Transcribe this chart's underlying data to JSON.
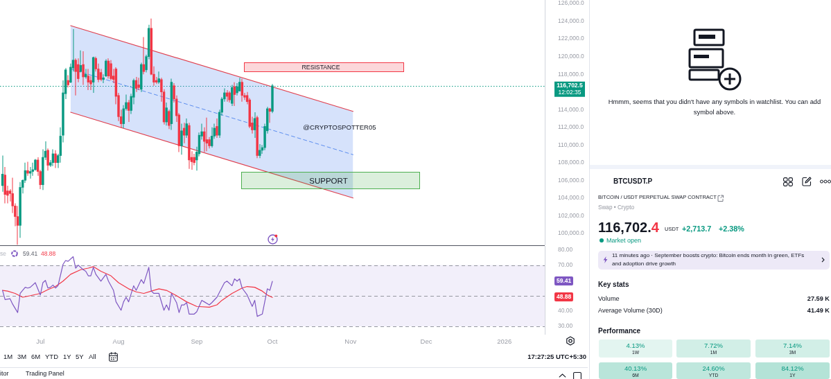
{
  "chart_data": [
    {
      "type": "candlestick",
      "x": [
        "2025-06-16",
        "2025-06-17",
        "2025-06-18",
        "2025-06-19",
        "2025-06-20",
        "2025-06-21",
        "2025-06-22",
        "2025-06-23",
        "2025-06-24",
        "2025-06-25",
        "2025-06-26",
        "2025-06-27",
        "2025-06-28",
        "2025-06-29",
        "2025-06-30",
        "2025-07-01",
        "2025-07-02",
        "2025-07-03",
        "2025-07-04",
        "2025-07-05",
        "2025-07-06",
        "2025-07-07",
        "2025-07-08",
        "2025-07-09",
        "2025-07-10",
        "2025-07-11",
        "2025-07-12",
        "2025-07-13",
        "2025-07-14",
        "2025-07-15",
        "2025-07-16",
        "2025-07-17",
        "2025-07-18",
        "2025-07-19",
        "2025-07-20",
        "2025-07-21",
        "2025-07-22",
        "2025-07-23",
        "2025-07-24",
        "2025-07-25",
        "2025-07-26",
        "2025-07-27",
        "2025-07-28",
        "2025-07-29",
        "2025-07-30",
        "2025-07-31",
        "2025-08-01",
        "2025-08-02",
        "2025-08-03",
        "2025-08-04",
        "2025-08-05",
        "2025-08-06",
        "2025-08-07",
        "2025-08-08",
        "2025-08-09",
        "2025-08-10",
        "2025-08-11",
        "2025-08-12",
        "2025-08-13",
        "2025-08-14",
        "2025-08-15",
        "2025-08-16",
        "2025-08-17",
        "2025-08-18",
        "2025-08-19",
        "2025-08-20",
        "2025-08-21",
        "2025-08-22",
        "2025-08-23",
        "2025-08-24",
        "2025-08-25",
        "2025-08-26",
        "2025-08-27",
        "2025-08-28",
        "2025-08-29",
        "2025-08-30",
        "2025-08-31",
        "2025-09-01",
        "2025-09-02",
        "2025-09-03",
        "2025-09-04",
        "2025-09-05",
        "2025-09-06",
        "2025-09-07",
        "2025-09-08",
        "2025-09-09",
        "2025-09-10",
        "2025-09-11",
        "2025-09-12",
        "2025-09-13",
        "2025-09-14",
        "2025-09-15",
        "2025-09-16",
        "2025-09-17",
        "2025-09-18",
        "2025-09-19",
        "2025-09-20",
        "2025-09-21",
        "2025-09-22",
        "2025-09-23",
        "2025-09-24",
        "2025-09-25",
        "2025-09-26",
        "2025-09-27",
        "2025-09-28",
        "2025-09-29",
        "2025-09-30",
        "2025-10-01"
      ],
      "ohlc": [
        [
          105400,
          108800,
          104700,
          106700
        ],
        [
          106600,
          107500,
          103400,
          104400
        ],
        [
          104800,
          105400,
          103400,
          104300
        ],
        [
          104800,
          105000,
          103600,
          104500
        ],
        [
          104500,
          106300,
          102300,
          103100
        ],
        [
          103100,
          103400,
          100800,
          101900
        ],
        [
          101900,
          103100,
          98700,
          100900
        ],
        [
          100900,
          105800,
          99500,
          105200
        ],
        [
          105200,
          106100,
          104500,
          106000
        ],
        [
          106000,
          108000,
          105700,
          107100
        ],
        [
          107100,
          108100,
          106500,
          106800
        ],
        [
          106800,
          107500,
          106200,
          107000
        ],
        [
          107000,
          108000,
          106500,
          107200
        ],
        [
          107200,
          108400,
          107100,
          108300
        ],
        [
          108300,
          108600,
          106500,
          107000
        ],
        [
          107000,
          107200,
          105000,
          105500
        ],
        [
          105500,
          109500,
          104900,
          108600
        ],
        [
          108600,
          110400,
          108300,
          109300
        ],
        [
          109400,
          109600,
          107100,
          107700
        ],
        [
          107700,
          108300,
          107500,
          108000
        ],
        [
          108000,
          109500,
          107600,
          109000
        ],
        [
          109000,
          109400,
          107400,
          108000
        ],
        [
          108000,
          109000,
          107400,
          108800
        ],
        [
          108800,
          112000,
          108000,
          111000
        ],
        [
          111100,
          117300,
          110300,
          115900
        ],
        [
          115800,
          118700,
          115200,
          118500
        ],
        [
          117300,
          117900,
          116500,
          116800
        ],
        [
          117100,
          119200,
          117000,
          118800
        ],
        [
          118700,
          123100,
          118300,
          119600
        ],
        [
          119600,
          119800,
          115600,
          118300
        ],
        [
          119100,
          119800,
          117100,
          117500
        ],
        [
          118300,
          120700,
          118200,
          119000
        ],
        [
          119100,
          120600,
          116800,
          117700
        ],
        [
          117700,
          118600,
          117500,
          118000
        ],
        [
          117800,
          118600,
          116200,
          117100
        ],
        [
          117300,
          117800,
          116200,
          116900
        ],
        [
          117100,
          120000,
          115900,
          119900
        ],
        [
          119800,
          120000,
          118300,
          118600
        ],
        [
          118600,
          119200,
          117100,
          117400
        ],
        [
          118200,
          118600,
          117200,
          117400
        ],
        [
          117400,
          118000,
          117000,
          117600
        ],
        [
          117800,
          119700,
          117700,
          119500
        ],
        [
          119500,
          119800,
          117500,
          117800
        ],
        [
          119200,
          119600,
          117300,
          117500
        ],
        [
          117800,
          118600,
          117000,
          117400
        ],
        [
          118600,
          118800,
          114600,
          115500
        ],
        [
          115600,
          115900,
          112700,
          113200
        ],
        [
          113200,
          114000,
          111900,
          112400
        ],
        [
          112400,
          114500,
          111900,
          114100
        ],
        [
          114100,
          115700,
          113900,
          114800
        ],
        [
          114800,
          115100,
          112600,
          113900
        ],
        [
          113900,
          115800,
          113500,
          115500
        ],
        [
          115400,
          117500,
          114600,
          117300
        ],
        [
          117300,
          117700,
          116000,
          116400
        ],
        [
          116800,
          117600,
          116200,
          116500
        ],
        [
          116300,
          119300,
          116000,
          119100
        ],
        [
          119100,
          122200,
          118000,
          118300
        ],
        [
          118500,
          120200,
          118200,
          120000
        ],
        [
          120000,
          123600,
          119700,
          123200
        ],
        [
          123200,
          124300,
          117900,
          118000
        ],
        [
          118000,
          118900,
          116700,
          117100
        ],
        [
          117300,
          117700,
          116900,
          117100
        ],
        [
          117100,
          118300,
          116900,
          117500
        ],
        [
          117400,
          117600,
          114900,
          116000
        ],
        [
          116000,
          116300,
          112300,
          112600
        ],
        [
          112600,
          114800,
          112200,
          114200
        ],
        [
          113800,
          114000,
          111800,
          112200
        ],
        [
          112400,
          117500,
          111700,
          117100
        ],
        [
          116700,
          117000,
          114800,
          115200
        ],
        [
          115200,
          115600,
          112600,
          113300
        ],
        [
          113400,
          113600,
          109200,
          109900
        ],
        [
          109900,
          112400,
          108900,
          111600
        ],
        [
          111900,
          112500,
          110200,
          111100
        ],
        [
          111100,
          113000,
          110800,
          112400
        ],
        [
          112200,
          112500,
          107300,
          108300
        ],
        [
          108600,
          109300,
          107200,
          108100
        ],
        [
          108600,
          109000,
          107700,
          108000
        ],
        [
          108300,
          109800,
          107100,
          109200
        ],
        [
          109000,
          111400,
          108700,
          111100
        ],
        [
          111000,
          112400,
          110600,
          111500
        ],
        [
          111500,
          112000,
          109200,
          110400
        ],
        [
          110600,
          113100,
          109300,
          110200
        ],
        [
          110600,
          110900,
          109600,
          109900
        ],
        [
          109900,
          112000,
          109700,
          111000
        ],
        [
          111000,
          112400,
          110700,
          111900
        ],
        [
          112100,
          113000,
          110800,
          111100
        ],
        [
          111100,
          114000,
          110800,
          113700
        ],
        [
          113700,
          115400,
          113300,
          115200
        ],
        [
          115200,
          116400,
          114900,
          115900
        ],
        [
          115900,
          116200,
          114900,
          115500
        ],
        [
          115900,
          116100,
          114800,
          115100
        ],
        [
          114700,
          116800,
          114400,
          116500
        ],
        [
          116600,
          117100,
          114400,
          115700
        ],
        [
          115900,
          117000,
          115600,
          116600
        ],
        [
          116100,
          117600,
          116100,
          117100
        ],
        [
          117100,
          117500,
          114900,
          115600
        ],
        [
          115600,
          115900,
          115100,
          115400
        ],
        [
          115600,
          116000,
          114600,
          114900
        ],
        [
          115100,
          115300,
          111900,
          112100
        ],
        [
          112500,
          113200,
          111300,
          111700
        ],
        [
          111700,
          113700,
          110800,
          113000
        ],
        [
          113100,
          113300,
          108500,
          108800
        ],
        [
          108800,
          110100,
          108500,
          109400
        ],
        [
          109400,
          110000,
          109000,
          109700
        ],
        [
          109700,
          112400,
          109400,
          112100
        ],
        [
          111600,
          114300,
          111300,
          114100
        ],
        [
          114100,
          114200,
          112500,
          113800
        ],
        [
          113800,
          116900,
          113600,
          116700
        ]
      ],
      "colors": [
        "#089981",
        "#f23645",
        "#f23645",
        "#f23645",
        "#f23645",
        "#f23645",
        "#f23645",
        "#089981",
        "#089981",
        "#089981",
        "#f23645",
        "#089981",
        "#089981",
        "#089981",
        "#f23645",
        "#f23645",
        "#089981",
        "#089981",
        "#f23645",
        "#089981",
        "#089981",
        "#f23645",
        "#089981",
        "#089981",
        "#089981",
        "#089981",
        "#f23645",
        "#089981",
        "#089981",
        "#f23645",
        "#f23645",
        "#089981",
        "#f23645",
        "#089981",
        "#f23645",
        "#f23645",
        "#089981",
        "#f23645",
        "#f23645",
        "#f23645",
        "#089981",
        "#089981",
        "#f23645",
        "#f23645",
        "#f23645",
        "#f23645",
        "#f23645",
        "#f23645",
        "#089981",
        "#089981",
        "#f23645",
        "#089981",
        "#089981",
        "#f23645",
        "#f23645",
        "#089981",
        "#f23645",
        "#089981",
        "#089981",
        "#f23645",
        "#f23645",
        "#f23645",
        "#089981",
        "#f23645",
        "#f23645",
        "#089981",
        "#f23645",
        "#089981",
        "#f23645",
        "#f23645",
        "#f23645",
        "#089981",
        "#f23645",
        "#089981",
        "#f23645",
        "#f23645",
        "#f23645",
        "#089981",
        "#089981",
        "#089981",
        "#f23645",
        "#f23645",
        "#f23645",
        "#089981",
        "#089981",
        "#f23645",
        "#089981",
        "#089981",
        "#089981",
        "#f23645",
        "#f23645",
        "#089981",
        "#f23645",
        "#089981",
        "#089981",
        "#f23645",
        "#f23645",
        "#f23645",
        "#f23645",
        "#f23645",
        "#089981",
        "#f23645",
        "#089981",
        "#089981",
        "#089981",
        "#089981",
        "#f23645",
        "#089981"
      ],
      "series": [
        {
          "type": "line",
          "color": "#e0404f",
          "x": [
            "2025-07-13",
            "2025-11-02"
          ],
          "values": [
            123500,
            113800
          ]
        },
        {
          "type": "line",
          "color": "#e0404f",
          "x": [
            "2025-07-13",
            "2025-11-02"
          ],
          "values": [
            113700,
            104000
          ]
        },
        {
          "type": "line",
          "color": "#5b8def",
          "line_style": "dashed",
          "x": [
            "2025-07-13",
            "2025-11-02"
          ],
          "values": [
            118600,
            108900
          ],
          "lower": [
            113700,
            104000
          ],
          "upper": [
            123500,
            113800
          ]
        }
      ],
      "xlim": [
        "2025-06-15",
        "2026-01-17"
      ],
      "ylim": [
        98650,
        126400
      ],
      "yticks": [
        {
          "value": 100000,
          "label": "100,000.0"
        },
        {
          "value": 102000,
          "label": "102,000.0"
        },
        {
          "value": 104000,
          "label": "104,000.0"
        },
        {
          "value": 106000,
          "label": "106,000.0"
        },
        {
          "value": 108000,
          "label": "108,000.0"
        },
        {
          "value": 110000,
          "label": "110,000.0"
        },
        {
          "value": 112000,
          "label": "112,000.0"
        },
        {
          "value": 114000,
          "label": "114,000.0"
        },
        {
          "value": 118000,
          "label": "118,000.0"
        },
        {
          "value": 120000,
          "label": "120,000.0"
        },
        {
          "value": 122000,
          "label": "122,000.0"
        },
        {
          "value": 124000,
          "label": "124,000.0"
        },
        {
          "value": 126000,
          "label": "126,000.0"
        }
      ],
      "tick_labels": "y",
      "ref_lines": [
        {
          "axis": "y",
          "value": 116702.5,
          "label": "116,702.5\n12:02:35",
          "color": "#089981",
          "line_style": "dotted"
        }
      ],
      "annotations": [
        "@CRYPTOSPOTTER05",
        "RESISTANCE",
        "SUPPORT"
      ]
    },
    {
      "type": "line",
      "xlim": [
        "2025-06-15",
        "2026-01-17"
      ],
      "xticks": [
        {
          "value": "2025-07-01",
          "label": "Jul"
        },
        {
          "value": "2025-08-01",
          "label": "Aug"
        },
        {
          "value": "2025-09-01",
          "label": "Sep"
        },
        {
          "value": "2025-10-01",
          "label": "Oct"
        },
        {
          "value": "2025-11-01",
          "label": "Nov"
        },
        {
          "value": "2025-12-01",
          "label": "Dec"
        },
        {
          "value": "2026-01-01",
          "label": "2026"
        }
      ],
      "ylim": [
        25,
        82.5
      ],
      "yticks": [
        {
          "value": 30,
          "label": "30.00"
        },
        {
          "value": 40,
          "label": "40.00"
        },
        {
          "value": 70,
          "label": "70.00"
        },
        {
          "value": 80,
          "label": "80.00"
        }
      ],
      "bands": [
        {
          "axis": "y",
          "from": 30,
          "to": 70,
          "color": "#f2effa"
        }
      ],
      "ref_lines": [
        {
          "axis": "y",
          "value": 70,
          "color": "#9598a1",
          "line_style": "dashed"
        },
        {
          "axis": "y",
          "value": 50,
          "color": "#9598a1",
          "line_style": "dashed"
        },
        {
          "axis": "y",
          "value": 30,
          "color": "#9598a1",
          "line_style": "dashed"
        }
      ],
      "series": [
        {
          "color": "#7e57c2",
          "x": [
            "2025-06-16",
            "2025-06-17",
            "2025-06-19",
            "2025-06-20",
            "2025-06-22",
            "2025-06-23",
            "2025-06-25",
            "2025-06-26",
            "2025-06-27",
            "2025-06-29",
            "2025-07-01",
            "2025-07-02",
            "2025-07-03",
            "2025-07-04",
            "2025-07-05",
            "2025-07-06",
            "2025-07-07",
            "2025-07-08",
            "2025-07-10",
            "2025-07-11",
            "2025-07-12",
            "2025-07-14",
            "2025-07-15",
            "2025-07-16",
            "2025-07-18",
            "2025-07-19",
            "2025-07-20",
            "2025-07-21",
            "2025-07-22",
            "2025-07-23",
            "2025-07-25",
            "2025-07-27",
            "2025-07-28",
            "2025-07-30",
            "2025-07-31",
            "2025-08-02",
            "2025-08-03",
            "2025-08-04",
            "2025-08-05",
            "2025-08-07",
            "2025-08-08",
            "2025-08-10",
            "2025-08-11",
            "2025-08-13",
            "2025-08-14",
            "2025-08-15",
            "2025-08-17",
            "2025-08-19",
            "2025-08-20",
            "2025-08-21",
            "2025-08-22",
            "2025-08-24",
            "2025-08-25",
            "2025-08-26",
            "2025-08-27",
            "2025-08-28",
            "2025-08-29",
            "2025-08-31",
            "2025-09-01",
            "2025-09-03",
            "2025-09-04",
            "2025-09-06",
            "2025-09-07",
            "2025-09-09",
            "2025-09-12",
            "2025-09-13",
            "2025-09-15",
            "2025-09-16",
            "2025-09-17",
            "2025-09-18",
            "2025-09-19",
            "2025-09-21",
            "2025-09-23",
            "2025-09-24",
            "2025-09-25",
            "2025-09-27",
            "2025-09-29",
            "2025-09-30",
            "2025-10-01"
          ],
          "values": [
            53.5,
            47.5,
            48,
            44.5,
            39,
            51.5,
            55.5,
            55,
            55.5,
            58.5,
            50.5,
            58.5,
            60,
            55,
            55.5,
            57,
            55,
            56.5,
            70.5,
            73,
            72.5,
            75.5,
            68,
            70,
            67,
            66,
            63,
            63,
            68.5,
            64,
            59.5,
            64,
            59.5,
            53.5,
            46,
            40.5,
            46,
            49,
            46,
            56.5,
            53.5,
            60.5,
            58,
            68.5,
            53,
            51.5,
            51.5,
            40.5,
            44,
            40.5,
            51.5,
            45.5,
            39,
            44,
            44,
            45.5,
            38,
            38,
            39.5,
            47,
            46,
            44,
            45.5,
            49,
            58.5,
            59.5,
            56.5,
            61,
            59.5,
            61,
            55,
            50.5,
            43,
            47,
            36.5,
            38,
            54.5,
            53.5,
            59.41
          ]
        },
        {
          "color": "#f23645",
          "x": [
            "2025-06-16",
            "2025-06-18",
            "2025-06-21",
            "2025-06-24",
            "2025-06-27",
            "2025-07-01",
            "2025-07-04",
            "2025-07-07",
            "2025-07-10",
            "2025-07-13",
            "2025-07-17",
            "2025-07-20",
            "2025-07-22",
            "2025-07-25",
            "2025-07-29",
            "2025-08-01",
            "2025-08-05",
            "2025-08-08",
            "2025-08-11",
            "2025-08-14",
            "2025-08-17",
            "2025-08-20",
            "2025-08-24",
            "2025-08-28",
            "2025-09-01",
            "2025-09-06",
            "2025-09-09",
            "2025-09-11",
            "2025-09-15",
            "2025-09-19",
            "2025-09-21",
            "2025-09-24",
            "2025-09-27",
            "2025-09-29",
            "2025-10-01"
          ],
          "values": [
            53.5,
            53,
            51.5,
            49,
            50,
            51.5,
            54,
            56,
            59.5,
            64,
            67,
            68,
            69,
            66,
            63,
            58.5,
            54.5,
            52.5,
            51.5,
            53,
            54.5,
            53.5,
            50,
            46,
            43,
            42.5,
            44,
            47,
            51.5,
            55,
            56,
            55.5,
            53,
            50.5,
            48.88
          ]
        }
      ],
      "annotations": [
        "se",
        "59.41",
        "48.88",
        "59.41",
        "48.88"
      ]
    },
    {
      "type": "other",
      "annotations": [
        "Hmmm, seems that you didn't have any symbols in watchlist. You can add symbol above.",
        "BTCUSDT.P",
        "BITCOIN / USDT PERPETUAL SWAP CONTRACT",
        "Swap • Crypto",
        "116,702.4",
        "USDT",
        "+2,713.7",
        "+2.38%",
        "Market open",
        "11 minutes ago · September boosts crypto: Bitcoin ends month in green, ETFs and adoption drive growth",
        "Key stats",
        "Volume",
        "27.59 K",
        "Average Volume (30D)",
        "41.49 K",
        "Performance",
        "4.13%",
        "1W",
        "7.72%",
        "1M",
        "7.14%",
        "3M",
        "40.13%",
        "6M",
        "24.60%",
        "YTD",
        "84.12%",
        "1Y"
      ]
    },
    {
      "type": "other",
      "annotations": [
        "1M",
        "3M",
        "6M",
        "YTD",
        "1Y",
        "5Y",
        "All",
        "17:27:25 UTC+5:30",
        "itor",
        "Trading Panel"
      ]
    }
  ]
}
